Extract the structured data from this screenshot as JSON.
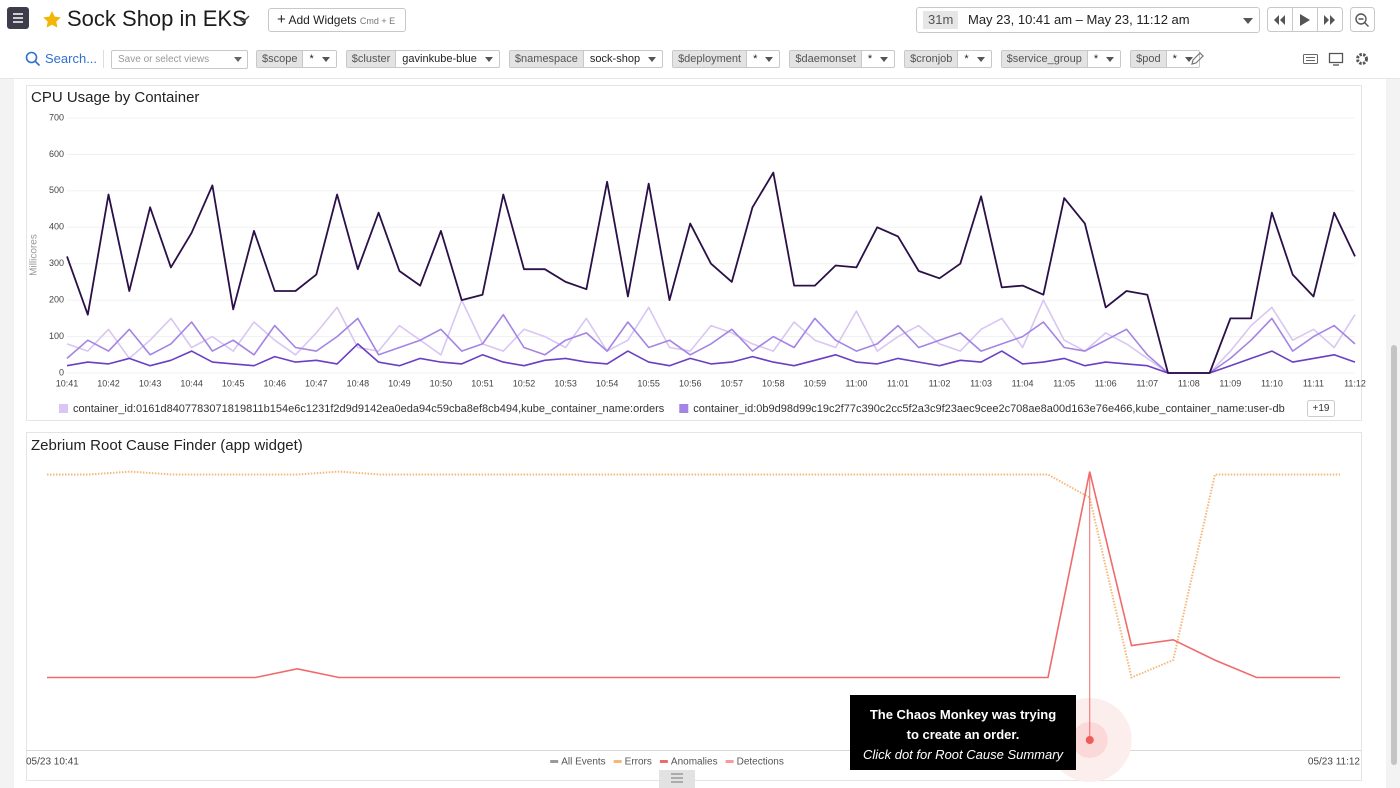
{
  "header": {
    "title": "Sock Shop in EKS",
    "add_widgets": "Add Widgets",
    "shortcut": "Cmd + E",
    "time_span": "31m",
    "time_range": "May 23, 10:41 am – May 23, 11:12 am"
  },
  "toolbar": {
    "search": "Search...",
    "views_placeholder": "Save or select views",
    "filters": [
      {
        "name": "$scope",
        "value": "*"
      },
      {
        "name": "$cluster",
        "value": "gavinkube-blue"
      },
      {
        "name": "$namespace",
        "value": "sock-shop"
      },
      {
        "name": "$deployment",
        "value": "*"
      },
      {
        "name": "$daemonset",
        "value": "*"
      },
      {
        "name": "$cronjob",
        "value": "*"
      },
      {
        "name": "$service_group",
        "value": "*"
      },
      {
        "name": "$pod",
        "value": "*"
      }
    ]
  },
  "chart_data": [
    {
      "type": "line",
      "title": "CPU Usage by Container",
      "y_label": "Millicores",
      "ylim": [
        0,
        700
      ],
      "yticks": [
        0,
        100,
        200,
        300,
        400,
        500,
        600,
        700
      ],
      "grid": true,
      "legend_more": "+19",
      "categories": [
        "10:41",
        null,
        "10:42",
        null,
        "10:43",
        null,
        "10:44",
        null,
        "10:45",
        null,
        "10:46",
        null,
        "10:47",
        null,
        "10:48",
        null,
        "10:49",
        null,
        "10:50",
        null,
        "10:51",
        null,
        "10:52",
        null,
        "10:53",
        null,
        "10:54",
        null,
        "10:55",
        null,
        "10:56",
        null,
        "10:57",
        null,
        "10:58",
        null,
        "10:59",
        null,
        "11:00",
        null,
        "11:01",
        null,
        "11:02",
        null,
        "11:03",
        null,
        "11:04",
        null,
        "11:05",
        null,
        "11:06",
        null,
        "11:07",
        null,
        "11:08",
        null,
        "11:09",
        null,
        "11:10",
        null,
        "11:11",
        null,
        "11:12"
      ],
      "series": [
        {
          "name": "container_id:0161d8407783071819811b154e6c1231f2d9d9142ea0eda94c59cba8ef8cb494,kube_container_name:orders",
          "color": "#d9c6f2",
          "values": [
            80,
            60,
            120,
            40,
            90,
            150,
            70,
            100,
            60,
            140,
            90,
            50,
            110,
            180,
            70,
            60,
            130,
            90,
            50,
            200,
            80,
            60,
            120,
            100,
            70,
            150,
            60,
            90,
            180,
            70,
            60,
            130,
            110,
            80,
            60,
            140,
            90,
            70,
            170,
            60,
            100,
            130,
            80,
            60,
            120,
            150,
            70,
            200,
            90,
            60,
            110,
            80,
            40,
            0,
            0,
            0,
            60,
            130,
            180,
            90,
            120,
            70,
            160
          ]
        },
        {
          "name": "container_id:0b9d98d99c19c2f77c390c2cc5f2a3c9f23aec9cee2c708ae8a00d163e76e466,kube_container_name:user-db",
          "color": "#a484e4",
          "values": [
            40,
            90,
            60,
            120,
            50,
            80,
            140,
            60,
            90,
            50,
            130,
            70,
            60,
            100,
            150,
            50,
            70,
            90,
            120,
            60,
            80,
            160,
            70,
            50,
            90,
            110,
            60,
            140,
            70,
            90,
            50,
            80,
            120,
            60,
            100,
            70,
            150,
            90,
            60,
            80,
            130,
            70,
            90,
            110,
            60,
            80,
            100,
            140,
            70,
            60,
            90,
            120,
            50,
            0,
            0,
            0,
            40,
            90,
            150,
            60,
            100,
            130,
            80
          ]
        },
        {
          "color": "#6a3fc2",
          "values": [
            20,
            30,
            25,
            40,
            20,
            35,
            60,
            30,
            25,
            20,
            45,
            30,
            35,
            25,
            80,
            30,
            20,
            40,
            30,
            25,
            50,
            30,
            20,
            35,
            40,
            30,
            25,
            60,
            30,
            20,
            40,
            25,
            30,
            45,
            30,
            20,
            35,
            50,
            30,
            25,
            40,
            30,
            20,
            35,
            30,
            60,
            25,
            30,
            40,
            20,
            30,
            25,
            20,
            0,
            0,
            0,
            20,
            40,
            60,
            30,
            40,
            50,
            30
          ]
        },
        {
          "color": "#2b1048",
          "values": [
            320,
            160,
            490,
            225,
            455,
            290,
            385,
            515,
            175,
            390,
            225,
            225,
            270,
            490,
            285,
            440,
            280,
            240,
            390,
            200,
            215,
            490,
            285,
            285,
            250,
            230,
            525,
            210,
            520,
            200,
            410,
            300,
            250,
            455,
            550,
            240,
            240,
            295,
            290,
            400,
            375,
            280,
            260,
            300,
            485,
            235,
            240,
            215,
            480,
            410,
            180,
            225,
            215,
            0,
            0,
            0,
            150,
            150,
            440,
            270,
            210,
            440,
            320
          ]
        }
      ]
    },
    {
      "type": "line",
      "title": "Zebrium Root Cause Finder (app widget)",
      "ylim": [
        0,
        100
      ],
      "categories": [
        "05/23 10:41",
        null,
        null,
        null,
        null,
        null,
        null,
        null,
        null,
        null,
        null,
        null,
        null,
        null,
        null,
        null,
        null,
        null,
        null,
        null,
        null,
        null,
        null,
        null,
        null,
        null,
        null,
        null,
        null,
        null,
        null,
        "05/23 11:12"
      ],
      "series": [
        {
          "name": "All Events",
          "color": "#9a9a9a",
          "values": [
            null,
            null,
            null,
            null,
            null,
            null,
            null,
            null,
            null,
            null,
            null,
            null,
            null,
            null,
            null,
            null,
            null,
            null,
            null,
            null,
            null,
            null,
            null,
            null,
            null,
            null,
            null,
            null,
            null,
            null,
            null,
            null
          ]
        },
        {
          "name": "Errors",
          "color": "#f5b77a",
          "values": [
            95,
            95,
            96,
            95,
            95,
            95,
            95,
            96,
            95,
            95,
            95,
            95,
            95,
            95,
            95,
            95,
            95,
            95,
            95,
            95,
            95,
            95,
            95,
            95,
            95,
            87,
            25,
            31,
            95,
            95,
            95,
            95
          ]
        },
        {
          "name": "Anomalies",
          "color": "#ef6b6b",
          "values": [
            25,
            25,
            25,
            25,
            25,
            25,
            28,
            25,
            25,
            25,
            25,
            25,
            25,
            25,
            25,
            25,
            25,
            25,
            25,
            25,
            25,
            25,
            25,
            25,
            25,
            96,
            36,
            38,
            31,
            25,
            25,
            25
          ]
        },
        {
          "name": "Detections",
          "color": "#f59aa0",
          "values": [
            null,
            null,
            null,
            null,
            null,
            null,
            null,
            null,
            null,
            null,
            null,
            null,
            null,
            null,
            null,
            null,
            null,
            null,
            null,
            null,
            null,
            null,
            null,
            null,
            null,
            null,
            null,
            null,
            null,
            null,
            null,
            null
          ]
        }
      ],
      "annotation": {
        "title": "The Chaos Monkey was trying to create an order.",
        "note": "Click dot for Root Cause Summary"
      }
    }
  ]
}
